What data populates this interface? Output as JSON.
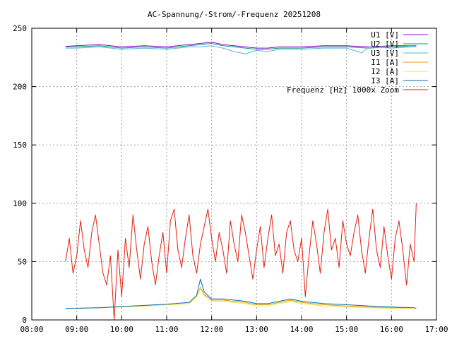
{
  "chart_data": {
    "type": "line",
    "title": "AC-Spannung/-Strom/-Frequenz 20251208",
    "xlabel": "",
    "ylabel": "",
    "xlim": [
      "08:00",
      "17:00"
    ],
    "ylim": [
      0,
      250
    ],
    "grid": true,
    "legend_position": "top-right",
    "x_ticks": [
      "08:00",
      "09:00",
      "10:00",
      "11:00",
      "12:00",
      "13:00",
      "14:00",
      "15:00",
      "16:00",
      "17:00"
    ],
    "y_ticks": [
      "0",
      "50",
      "100",
      "150",
      "200",
      "250"
    ],
    "series": [
      {
        "name": "U1 [V]",
        "color": "#9400d3",
        "x": [
          "08:45",
          "09:00",
          "09:30",
          "10:00",
          "10:30",
          "11:00",
          "11:30",
          "11:45",
          "12:00",
          "12:15",
          "12:30",
          "12:45",
          "13:00",
          "13:15",
          "13:30",
          "14:00",
          "14:30",
          "15:00",
          "15:30",
          "16:00",
          "16:30",
          "16:33"
        ],
        "y": [
          234.5,
          235,
          236,
          234,
          235,
          234,
          236,
          237,
          238,
          236,
          235,
          234,
          233,
          233,
          234,
          234,
          235,
          235,
          234,
          235,
          235,
          235
        ]
      },
      {
        "name": "U2 [V]",
        "color": "#009e73",
        "x": [
          "08:45",
          "09:00",
          "09:30",
          "10:00",
          "10:30",
          "11:00",
          "11:30",
          "11:45",
          "12:00",
          "12:15",
          "12:30",
          "12:45",
          "13:00",
          "13:15",
          "13:30",
          "14:00",
          "14:30",
          "15:00",
          "15:30",
          "16:00",
          "16:30",
          "16:33"
        ],
        "y": [
          234,
          234,
          235,
          233,
          234,
          233,
          235,
          236,
          237,
          235,
          234,
          233,
          232,
          232,
          233,
          233,
          234,
          234,
          233,
          234,
          235,
          235
        ]
      },
      {
        "name": "U3 [V]",
        "color": "#56b4e9",
        "x": [
          "08:45",
          "09:00",
          "09:30",
          "10:00",
          "10:30",
          "11:00",
          "11:30",
          "11:45",
          "12:00",
          "12:15",
          "12:30",
          "12:45",
          "13:00",
          "13:15",
          "13:30",
          "14:00",
          "14:30",
          "15:00",
          "15:20",
          "15:30",
          "16:00",
          "16:30",
          "16:33"
        ],
        "y": [
          233,
          233,
          234,
          232,
          233,
          232,
          234,
          234,
          235,
          233,
          230,
          228,
          231,
          230,
          232,
          232,
          233,
          233,
          229,
          234,
          233,
          234,
          234
        ]
      },
      {
        "name": "I1 [A]",
        "color": "#e69f00",
        "x": [
          "08:45",
          "09:00",
          "09:30",
          "10:00",
          "10:30",
          "11:00",
          "11:30",
          "11:40",
          "11:45",
          "11:50",
          "12:00",
          "12:15",
          "12:30",
          "12:45",
          "13:00",
          "13:15",
          "13:30",
          "13:45",
          "14:00",
          "14:30",
          "15:00",
          "15:30",
          "16:00",
          "16:30",
          "16:33"
        ],
        "y": [
          10,
          10,
          10.5,
          11,
          12,
          13,
          14,
          20,
          28,
          22,
          17,
          17,
          16,
          15,
          13,
          13,
          15,
          17,
          15,
          13,
          12,
          11,
          10.5,
          10,
          10
        ]
      },
      {
        "name": "I2 [A]",
        "color": "#f0e442",
        "x": [
          "08:45",
          "09:00",
          "09:30",
          "10:00",
          "10:30",
          "11:00",
          "11:30",
          "11:40",
          "11:45",
          "11:50",
          "12:00",
          "12:15",
          "12:30",
          "12:45",
          "13:00",
          "13:15",
          "13:30",
          "13:45",
          "14:00",
          "14:30",
          "15:00",
          "15:30",
          "16:00",
          "16:30",
          "16:33"
        ],
        "y": [
          10,
          10,
          10.5,
          11,
          12,
          13,
          14,
          20,
          27,
          21,
          16,
          16,
          15,
          14,
          12,
          12,
          14,
          16,
          14,
          12,
          11,
          10.5,
          10,
          10,
          10
        ]
      },
      {
        "name": "I3 [A]",
        "color": "#0072b2",
        "x": [
          "08:45",
          "09:00",
          "09:30",
          "10:00",
          "10:30",
          "11:00",
          "11:30",
          "11:40",
          "11:45",
          "11:50",
          "12:00",
          "12:15",
          "12:30",
          "12:45",
          "13:00",
          "13:15",
          "13:30",
          "13:45",
          "14:00",
          "14:30",
          "15:00",
          "15:30",
          "16:00",
          "16:30",
          "16:33"
        ],
        "y": [
          10,
          10,
          10.5,
          11.5,
          12.5,
          13.5,
          15,
          21,
          35,
          24,
          18,
          18,
          17,
          16,
          14,
          14,
          16,
          18,
          16,
          14,
          13,
          12,
          11,
          10.5,
          10
        ]
      },
      {
        "name": "Frequenz [Hz] 1000x Zoom",
        "color": "#e51e10",
        "x": [
          "08:45",
          "08:50",
          "08:55",
          "09:00",
          "09:05",
          "09:10",
          "09:15",
          "09:20",
          "09:25",
          "09:30",
          "09:35",
          "09:40",
          "09:45",
          "09:50",
          "09:55",
          "10:00",
          "10:05",
          "10:10",
          "10:15",
          "10:20",
          "10:25",
          "10:30",
          "10:35",
          "10:40",
          "10:45",
          "10:50",
          "10:55",
          "11:00",
          "11:05",
          "11:10",
          "11:15",
          "11:20",
          "11:25",
          "11:30",
          "11:35",
          "11:40",
          "11:45",
          "11:50",
          "11:55",
          "12:00",
          "12:05",
          "12:10",
          "12:15",
          "12:20",
          "12:25",
          "12:30",
          "12:35",
          "12:40",
          "12:45",
          "12:50",
          "12:55",
          "13:00",
          "13:05",
          "13:10",
          "13:15",
          "13:20",
          "13:25",
          "13:30",
          "13:35",
          "13:40",
          "13:45",
          "13:50",
          "13:55",
          "14:00",
          "14:05",
          "14:10",
          "14:15",
          "14:20",
          "14:25",
          "14:30",
          "14:35",
          "14:40",
          "14:45",
          "14:50",
          "14:55",
          "15:00",
          "15:05",
          "15:10",
          "15:15",
          "15:20",
          "15:25",
          "15:30",
          "15:35",
          "15:40",
          "15:45",
          "15:50",
          "15:55",
          "16:00",
          "16:05",
          "16:10",
          "16:15",
          "16:20",
          "16:25",
          "16:30",
          "16:33"
        ],
        "y": [
          50,
          70,
          40,
          55,
          85,
          60,
          45,
          75,
          90,
          65,
          40,
          30,
          55,
          0,
          60,
          20,
          70,
          45,
          90,
          60,
          35,
          65,
          80,
          50,
          30,
          55,
          75,
          40,
          85,
          95,
          60,
          45,
          70,
          90,
          55,
          40,
          65,
          80,
          95,
          70,
          50,
          75,
          60,
          40,
          85,
          65,
          50,
          90,
          75,
          55,
          35,
          60,
          80,
          45,
          70,
          90,
          55,
          65,
          40,
          75,
          85,
          60,
          50,
          70,
          20,
          55,
          85,
          65,
          40,
          75,
          95,
          60,
          70,
          45,
          85,
          65,
          55,
          75,
          90,
          60,
          40,
          70,
          95,
          60,
          45,
          80,
          55,
          35,
          70,
          85,
          60,
          30,
          65,
          50,
          100
        ]
      }
    ]
  }
}
